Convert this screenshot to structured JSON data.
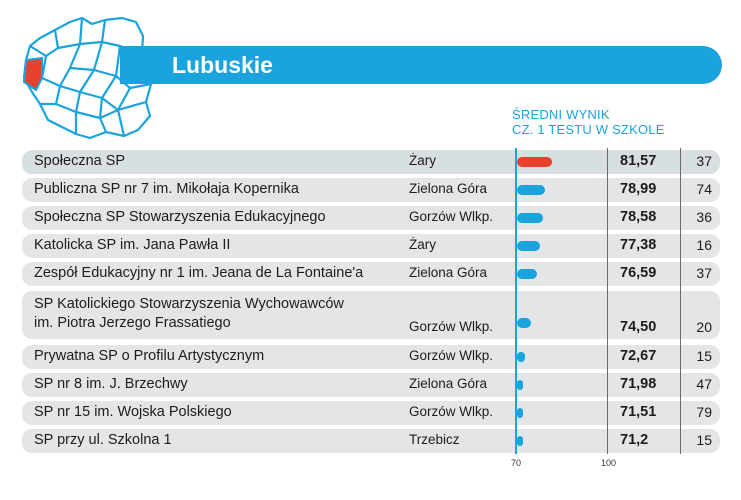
{
  "header": {
    "title": "Lubuskie",
    "column_heading_line1": "ŚREDNI WYNIK",
    "column_heading_line2": "CZ. 1 TESTU W SZKOLE"
  },
  "colors": {
    "accent": "#1aa3dc",
    "highlight_bar": "#e8412c",
    "row_background": "#e3e5e6",
    "highlighted_region": "#e8412c"
  },
  "map": {
    "icon": "poland-voivodeships-map-icon",
    "highlighted_region": "Lubuskie"
  },
  "chart_data": {
    "type": "bar",
    "title": "Lubuskie",
    "ylabel": "ŚREDNI WYNIK CZ. 1 TESTU W SZKOLE",
    "xlim": [
      70,
      100
    ],
    "tick_labels": [
      "70",
      "100"
    ],
    "highlighted_index": 0,
    "rows": [
      {
        "name": "Społeczna SP",
        "city": "Żary",
        "score": "81,57",
        "value": 81.57,
        "rank": "37"
      },
      {
        "name": "Publiczna SP nr 7 im. Mikołaja Kopernika",
        "city": "Zielona Góra",
        "score": "78,99",
        "value": 78.99,
        "rank": "74"
      },
      {
        "name": "Społeczna SP Stowarzyszenia Edukacyjnego",
        "city": "Gorzów Wlkp.",
        "score": "78,58",
        "value": 78.58,
        "rank": "36"
      },
      {
        "name": "Katolicka SP im. Jana Pawła II",
        "city": "Żary",
        "score": "77,38",
        "value": 77.38,
        "rank": "16"
      },
      {
        "name": "Zespół Edukacyjny nr 1 im. Jeana de La Fontaine'a",
        "city": "Zielona Góra",
        "score": "76,59",
        "value": 76.59,
        "rank": "37"
      },
      {
        "name": "SP Katolickiego Stowarzyszenia Wychowawców",
        "name_line2": "im. Piotra Jerzego Frassatiego",
        "city": "Gorzów Wlkp.",
        "score": "74,50",
        "value": 74.5,
        "rank": "20"
      },
      {
        "name": "Prywatna SP o Profilu Artystycznym",
        "city": "Gorzów Wlkp.",
        "score": "72,67",
        "value": 72.67,
        "rank": "15"
      },
      {
        "name": "SP nr 8 im. J. Brzechwy",
        "city": "Zielona Góra",
        "score": "71,98",
        "value": 71.98,
        "rank": "47"
      },
      {
        "name": "SP nr 15 im. Wojska Polskiego",
        "city": "Gorzów Wlkp.",
        "score": "71,51",
        "value": 71.51,
        "rank": "79"
      },
      {
        "name": "SP przy ul. Szkolna 1",
        "city": "Trzebicz",
        "score": "71,2",
        "value": 71.2,
        "rank": "15"
      }
    ]
  }
}
